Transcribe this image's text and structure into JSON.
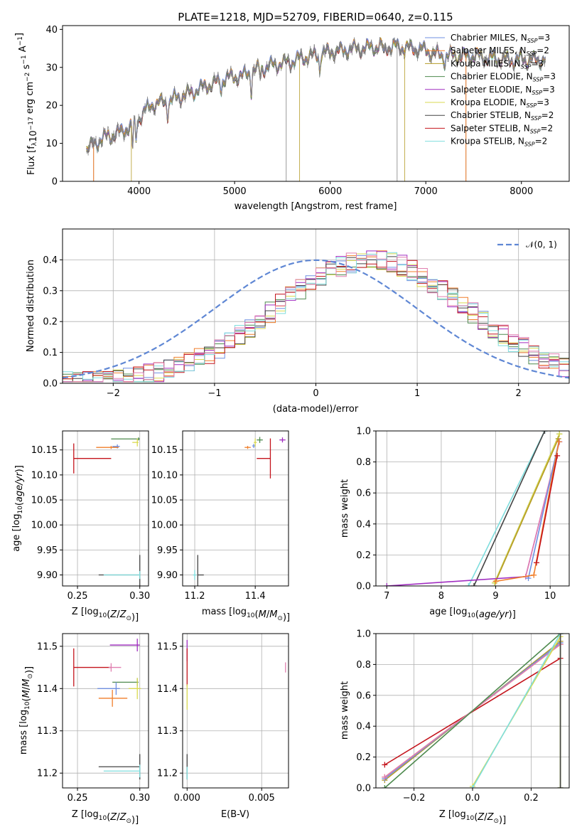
{
  "title": "PLATE=1218, MJD=52709, FIBERID=0640, z=0.115",
  "colors": {
    "Chabrier MILES": "#6f8fe0",
    "Salpeter MILES": "#f07e2a",
    "Kroupa MILES": "#b59b27",
    "Chabrier ELODIE": "#4e8a4e",
    "Salpeter ELODIE": "#a12ec1",
    "Kroupa ELODIE": "#dada50",
    "Chabrier STELIB": "#444444",
    "Salpeter STELIB": "#c4141c",
    "Kroupa STELIB": "#7fdede",
    "extra_pink": "#e07fb0",
    "data_gray": "#808080",
    "gaussian": "#5f87d4"
  },
  "chart_data": [
    {
      "id": "spectrum",
      "type": "line",
      "xlabel": "wavelength [Angstrom, rest frame]",
      "ylabel": "Flux [f_λ 10^{-17} erg cm^{-2} s^{-1} A^{-1}]",
      "xlim": [
        3200,
        8500
      ],
      "ylim": [
        0,
        41
      ],
      "xticks": [
        4000,
        5000,
        6000,
        7000,
        8000
      ],
      "yticks": [
        0,
        10,
        20,
        30,
        40
      ],
      "x_range": [
        3450,
        8250
      ],
      "legend_position": "top-right",
      "legend": [
        {
          "model": "Chabrier MILES",
          "nssp": "3"
        },
        {
          "model": "Salpeter MILES",
          "nssp": "2"
        },
        {
          "model": "Kroupa MILES",
          "nssp": "3"
        },
        {
          "model": "Chabrier ELODIE",
          "nssp": "3"
        },
        {
          "model": "Salpeter ELODIE",
          "nssp": "3"
        },
        {
          "model": "Kroupa ELODIE",
          "nssp": "3"
        },
        {
          "model": "Chabrier STELIB",
          "nssp": "2"
        },
        {
          "model": "Salpeter STELIB",
          "nssp": "2"
        },
        {
          "model": "Kroupa STELIB",
          "nssp": "2"
        }
      ],
      "continuum": [
        [
          3450,
          8.5
        ],
        [
          3600,
          11
        ],
        [
          3800,
          13
        ],
        [
          3950,
          15
        ],
        [
          4100,
          20
        ],
        [
          4300,
          21
        ],
        [
          4500,
          23
        ],
        [
          4700,
          25
        ],
        [
          4900,
          27
        ],
        [
          5100,
          28
        ],
        [
          5300,
          30
        ],
        [
          5500,
          31
        ],
        [
          5800,
          33
        ],
        [
          6000,
          34
        ],
        [
          6300,
          35
        ],
        [
          6600,
          35.5
        ],
        [
          6900,
          35
        ],
        [
          7200,
          33
        ],
        [
          7500,
          33
        ],
        [
          7800,
          32
        ],
        [
          8000,
          32
        ],
        [
          8250,
          32
        ]
      ],
      "absorption_lines": [
        [
          3933,
          -6
        ],
        [
          3968,
          -5
        ],
        [
          4101,
          -2
        ],
        [
          4300,
          -3
        ],
        [
          4861,
          -2.5
        ],
        [
          5175,
          -5
        ],
        [
          5270,
          -2
        ],
        [
          5890,
          -4
        ],
        [
          6563,
          -2
        ],
        [
          7200,
          -2
        ]
      ],
      "spike_lines": [
        [
          3525,
          0
        ],
        [
          3920,
          0
        ],
        [
          5540,
          0
        ],
        [
          5680,
          0
        ],
        [
          6700,
          0
        ],
        [
          6780,
          0
        ],
        [
          7420,
          0
        ]
      ]
    },
    {
      "id": "residuals",
      "type": "line",
      "xlabel": "(data-model)/error",
      "ylabel": "Normed distribution",
      "xlim": [
        -2.5,
        2.5
      ],
      "ylim": [
        0,
        0.5
      ],
      "xticks": [
        -2,
        -1,
        0,
        1,
        2
      ],
      "yticks": [
        0.0,
        0.1,
        0.2,
        0.3,
        0.4
      ],
      "grid": true,
      "legend_position": "top-right",
      "legend": "𝒩(0, 1)",
      "bins": [
        -2.5,
        2.5,
        50
      ],
      "histogram_shape": "gaussian mean 0.55, sigma 0.95, peak 0.40"
    },
    {
      "id": "age_vs_Z",
      "type": "scatter",
      "xlabel": "Z [log10(Z/Z⊙)]",
      "ylabel": "age [log10(age/yr)]",
      "xlim": [
        0.238,
        0.307
      ],
      "ylim": [
        9.878,
        10.188
      ],
      "xticks": [
        0.25,
        0.3
      ],
      "yticks": [
        9.9,
        9.95,
        10.0,
        10.05,
        10.1,
        10.15
      ],
      "grid": true,
      "points": [
        {
          "series": "Salpeter STELIB",
          "x": 0.247,
          "y": 10.133,
          "xerr_lo": 0.0,
          "xerr_hi": 0.03,
          "yerr": 0.03
        },
        {
          "series": "Chabrier MILES",
          "x": 0.282,
          "y": 10.157,
          "xerr_lo": 0.004,
          "xerr_hi": 0.002,
          "yerr": 0.004
        },
        {
          "series": "Salpeter MILES",
          "x": 0.277,
          "y": 10.155,
          "xerr_lo": 0.012,
          "xerr_hi": 0.006,
          "yerr": 0.003
        },
        {
          "series": "Chabrier ELODIE",
          "x": 0.299,
          "y": 10.172,
          "xerr_lo": 0.022,
          "xerr_hi": 0.001,
          "yerr": 0.003
        },
        {
          "series": "Kroupa ELODIE",
          "x": 0.298,
          "y": 10.165,
          "xerr_lo": 0.004,
          "xerr_hi": 0.001,
          "yerr": 0.008
        },
        {
          "series": "Chabrier STELIB",
          "x": 0.3,
          "y": 9.9,
          "xerr_lo": 0.033,
          "xerr_hi": 0.0,
          "yerr": 0.04
        },
        {
          "series": "Kroupa STELIB",
          "x": 0.3,
          "y": 9.9,
          "xerr_lo": 0.029,
          "xerr_hi": 0.0,
          "yerr": 0.008
        }
      ]
    },
    {
      "id": "age_vs_mass",
      "type": "scatter",
      "xlabel": "mass [log10(M/M⊙)]",
      "ylabel": "",
      "xlim": [
        11.16,
        11.51
      ],
      "ylim": [
        9.878,
        10.188
      ],
      "xticks": [
        11.2,
        11.4
      ],
      "yticks": [
        9.9,
        9.95,
        10.0,
        10.05,
        10.1,
        10.15
      ],
      "grid": true,
      "points": [
        {
          "series": "Salpeter STELIB",
          "x": 11.45,
          "y": 10.133,
          "xerr_lo": 0.045,
          "xerr_hi": 0.0,
          "yerr": 0.04
        },
        {
          "series": "Salpeter MILES",
          "x": 11.375,
          "y": 10.155,
          "xerr_lo": 0.01,
          "xerr_hi": 0.01,
          "yerr": 0.003
        },
        {
          "series": "Chabrier MILES",
          "x": 11.395,
          "y": 10.158,
          "xerr_lo": 0.005,
          "xerr_hi": 0.005,
          "yerr": 0.004
        },
        {
          "series": "Chabrier ELODIE",
          "x": 11.415,
          "y": 10.17,
          "xerr_lo": 0.01,
          "xerr_hi": 0.01,
          "yerr": 0.006
        },
        {
          "series": "Kroupa ELODIE",
          "x": 11.4,
          "y": 10.165,
          "xerr_lo": 0.005,
          "xerr_hi": 0.005,
          "yerr": 0.008
        },
        {
          "series": "Salpeter ELODIE",
          "x": 11.49,
          "y": 10.17,
          "xerr_lo": 0.01,
          "xerr_hi": 0.01,
          "yerr": 0.005
        },
        {
          "series": "Chabrier STELIB",
          "x": 11.21,
          "y": 9.9,
          "xerr_lo": 0.0,
          "xerr_hi": 0.02,
          "yerr": 0.04
        },
        {
          "series": "Kroupa STELIB",
          "x": 11.2,
          "y": 9.9,
          "xerr_lo": 0.006,
          "xerr_hi": 0.006,
          "yerr": 0.01
        }
      ]
    },
    {
      "id": "massweight_vs_age",
      "type": "line",
      "xlabel": "age [log10(age/yr)]",
      "ylabel": "mass weight",
      "xlim": [
        6.8,
        10.35
      ],
      "ylim": [
        0,
        1.0
      ],
      "xticks": [
        7,
        8,
        9,
        10
      ],
      "yticks": [
        0.0,
        0.2,
        0.4,
        0.6,
        0.8,
        1.0
      ],
      "grid": true,
      "series": [
        {
          "name": "Kroupa STELIB",
          "points": [
            [
              8.5,
              0.0
            ],
            [
              9.9,
              1.0
            ]
          ]
        },
        {
          "name": "Chabrier STELIB",
          "points": [
            [
              8.6,
              0.0
            ],
            [
              9.9,
              1.0
            ]
          ]
        },
        {
          "name": "Chabrier ELODIE",
          "points": [
            [
              8.98,
              0.02
            ],
            [
              10.17,
              0.98
            ]
          ]
        },
        {
          "name": "Kroupa ELODIE",
          "points": [
            [
              8.98,
              0.02
            ],
            [
              10.17,
              0.98
            ]
          ]
        },
        {
          "name": "Kroupa MILES",
          "points": [
            [
              9.0,
              0.03
            ],
            [
              10.15,
              0.95
            ]
          ]
        },
        {
          "name": "Salpeter ELODIE",
          "points": [
            [
              7.0,
              0.0
            ],
            [
              9.55,
              0.06
            ],
            [
              10.17,
              0.93
            ]
          ]
        },
        {
          "name": "extra_pink",
          "points": [
            [
              9.55,
              0.06
            ],
            [
              10.17,
              0.93
            ]
          ]
        },
        {
          "name": "Chabrier MILES",
          "points": [
            [
              9.6,
              0.05
            ],
            [
              10.16,
              0.93
            ]
          ]
        },
        {
          "name": "Salpeter MILES",
          "points": [
            [
              9.0,
              0.03
            ],
            [
              9.7,
              0.07
            ],
            [
              10.16,
              0.93
            ]
          ]
        },
        {
          "name": "Salpeter STELIB",
          "points": [
            [
              9.75,
              0.15
            ],
            [
              10.13,
              0.84
            ]
          ]
        }
      ]
    },
    {
      "id": "mass_vs_Z",
      "type": "scatter",
      "xlabel": "Z [log10(Z/Z⊙)]",
      "ylabel": "mass [log10(M/M⊙)]",
      "xlim": [
        0.238,
        0.307
      ],
      "ylim": [
        11.165,
        11.53
      ],
      "xticks": [
        0.25,
        0.3
      ],
      "yticks": [
        11.2,
        11.3,
        11.4,
        11.5
      ],
      "grid": true,
      "points": [
        {
          "series": "Salpeter STELIB",
          "x": 0.247,
          "y": 11.45,
          "xerr_lo": 0.0,
          "xerr_hi": 0.03,
          "yerr": 0.045
        },
        {
          "series": "extra_pink",
          "x": 0.277,
          "y": 11.45,
          "xerr_lo": 0.002,
          "xerr_hi": 0.008,
          "yerr": 0.01
        },
        {
          "series": "Salpeter ELODIE",
          "x": 0.298,
          "y": 11.503,
          "xerr_lo": 0.022,
          "xerr_hi": 0.002,
          "yerr": 0.015
        },
        {
          "series": "Chabrier ELODIE",
          "x": 0.298,
          "y": 11.415,
          "xerr_lo": 0.02,
          "xerr_hi": 0.001,
          "yerr": 0.01
        },
        {
          "series": "Kroupa ELODIE",
          "x": 0.298,
          "y": 11.4,
          "xerr_lo": 0.007,
          "xerr_hi": 0.003,
          "yerr": 0.025
        },
        {
          "series": "Chabrier MILES",
          "x": 0.281,
          "y": 11.4,
          "xerr_lo": 0.015,
          "xerr_hi": 0.003,
          "yerr": 0.015
        },
        {
          "series": "Salpeter MILES",
          "x": 0.278,
          "y": 11.377,
          "xerr_lo": 0.011,
          "xerr_hi": 0.012,
          "yerr": 0.02
        },
        {
          "series": "Chabrier STELIB",
          "x": 0.3,
          "y": 11.215,
          "xerr_lo": 0.033,
          "xerr_hi": 0.0,
          "yerr": 0.03
        },
        {
          "series": "Kroupa STELIB",
          "x": 0.3,
          "y": 11.205,
          "xerr_lo": 0.029,
          "xerr_hi": 0.0,
          "yerr": 0.015
        }
      ]
    },
    {
      "id": "mass_vs_EBV",
      "type": "scatter",
      "xlabel": "E(B-V)",
      "ylabel": "",
      "xlim": [
        -0.0003,
        0.0068
      ],
      "ylim": [
        11.165,
        11.53
      ],
      "xticks": [
        0.0,
        0.005
      ],
      "yticks": [
        11.2,
        11.3,
        11.4,
        11.5
      ],
      "grid": true,
      "points": [
        {
          "series": "Salpeter ELODIE",
          "x": 0.0,
          "y": 11.49,
          "xerr_lo": 0,
          "xerr_hi": 0,
          "yerr": 0.025
        },
        {
          "series": "Salpeter STELIB",
          "x": 0.0,
          "y": 11.45,
          "xerr_lo": 0,
          "xerr_hi": 0,
          "yerr": 0.045
        },
        {
          "series": "Kroupa ELODIE",
          "x": 0.0,
          "y": 11.38,
          "xerr_lo": 0,
          "xerr_hi": 0,
          "yerr": 0.03
        },
        {
          "series": "Chabrier STELIB",
          "x": 0.0,
          "y": 11.215,
          "xerr_lo": 0,
          "xerr_hi": 0,
          "yerr": 0.03
        },
        {
          "series": "Kroupa STELIB",
          "x": 0.0,
          "y": 11.2,
          "xerr_lo": 0,
          "xerr_hi": 0,
          "yerr": 0.015
        },
        {
          "series": "extra_pink",
          "x": 0.0066,
          "y": 11.45,
          "xerr_lo": 0,
          "xerr_hi": 0,
          "yerr": 0.012
        }
      ]
    },
    {
      "id": "massweight_vs_Z",
      "type": "line",
      "xlabel": "Z [log10(Z/Z⊙)]",
      "ylabel": "mass weight",
      "xlim": [
        -0.33,
        0.33
      ],
      "ylim": [
        0,
        1.0
      ],
      "xticks": [
        -0.2,
        0.0,
        0.2
      ],
      "yticks": [
        0.0,
        0.2,
        0.4,
        0.6,
        0.8,
        1.0
      ],
      "grid": true,
      "series": [
        {
          "name": "Salpeter STELIB",
          "points": [
            [
              -0.3,
              0.15
            ],
            [
              0.3,
              0.84
            ]
          ]
        },
        {
          "name": "Salpeter MILES",
          "points": [
            [
              -0.3,
              0.07
            ],
            [
              0.3,
              0.93
            ]
          ]
        },
        {
          "name": "Kroupa MILES",
          "points": [
            [
              -0.3,
              0.05
            ],
            [
              0.3,
              0.95
            ]
          ]
        },
        {
          "name": "Chabrier MILES",
          "points": [
            [
              -0.3,
              0.06
            ],
            [
              0.3,
              0.94
            ]
          ]
        },
        {
          "name": "extra_pink",
          "points": [
            [
              -0.3,
              0.07
            ],
            [
              0.3,
              0.93
            ]
          ]
        },
        {
          "name": "Chabrier ELODIE",
          "points": [
            [
              -0.3,
              0.0
            ],
            [
              0.3,
              1.0
            ],
            [
              0.3,
              0.0
            ]
          ]
        },
        {
          "name": "Kroupa ELODIE",
          "points": [
            [
              0.0,
              0.01
            ],
            [
              0.3,
              0.98
            ],
            [
              0.3,
              0.0
            ]
          ]
        },
        {
          "name": "Kroupa STELIB",
          "points": [
            [
              0.0,
              0.0
            ],
            [
              0.3,
              1.0
            ]
          ]
        },
        {
          "name": "Chabrier STELIB",
          "points": [
            [
              0.3,
              0.0
            ],
            [
              0.3,
              1.0
            ]
          ]
        }
      ]
    }
  ]
}
